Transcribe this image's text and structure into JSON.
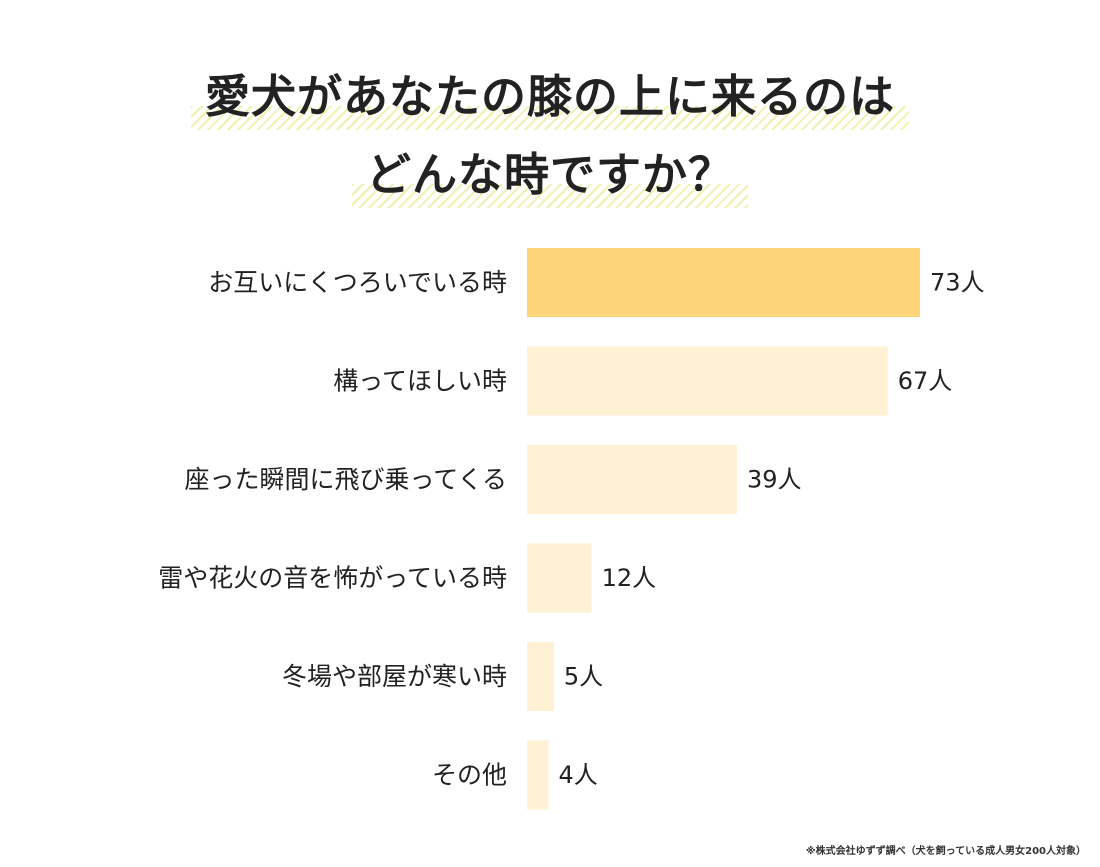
{
  "chart_data": {
    "type": "bar",
    "orientation": "horizontal",
    "title_lines": [
      "愛犬があなたの膝の上に来るのは",
      "どんな時ですか？"
    ],
    "categories": [
      "お互いにくつろいでいる時",
      "構ってほしい時",
      "座った瞬間に飛び乗ってくる",
      "雷や花火の音を怖がっている時",
      "冬場や部屋が寒い時",
      "その他"
    ],
    "values": [
      73,
      67,
      39,
      12,
      5,
      4
    ],
    "value_labels": [
      "73人",
      "67人",
      "39人",
      "12人",
      "5人",
      "4人"
    ],
    "unit": "人",
    "xlim": [
      0,
      73
    ],
    "grid": false,
    "legend": "none",
    "colors": {
      "highlight": "#fdd479",
      "bar": "#fff1d4",
      "stripe": "#eef1b0"
    }
  },
  "footnote": "※株式会社ゆずず調べ（犬を飼っている成人男女200人対象）"
}
